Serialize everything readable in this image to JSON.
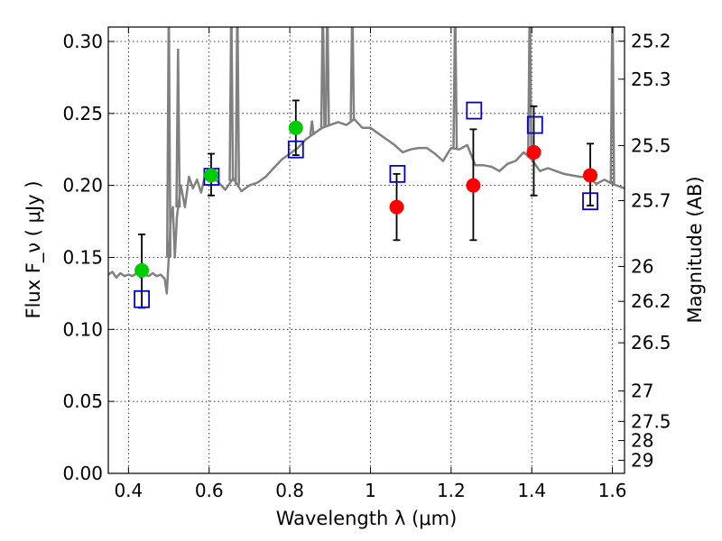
{
  "chart_data": {
    "type": "scatter",
    "xlabel": "Wavelength  λ (μm)",
    "ylabel": "Flux  F_ν  ( μJy )",
    "y2label": "Magnitude (AB)",
    "xlim": [
      0.35,
      1.63
    ],
    "ylim": [
      0.0,
      0.31
    ],
    "grid": true,
    "x_ticks": [
      0.4,
      0.6,
      0.8,
      1.0,
      1.2,
      1.4,
      1.6
    ],
    "x_tick_labels": [
      "0.4",
      "0.6",
      "0.8",
      "1",
      "1.2",
      "1.4",
      "1.6"
    ],
    "y_ticks": [
      0.0,
      0.05,
      0.1,
      0.15,
      0.2,
      0.25,
      0.3
    ],
    "y_tick_labels": [
      "0.00",
      "0.05",
      "0.10",
      "0.15",
      "0.20",
      "0.25",
      "0.30"
    ],
    "y2_ticks": [
      {
        "label": "25.2",
        "flux": 0.3002
      },
      {
        "label": "25.3",
        "flux": 0.2738
      },
      {
        "label": "25.5",
        "flux": 0.2277
      },
      {
        "label": "25.7",
        "flux": 0.1894
      },
      {
        "label": "26",
        "flux": 0.1437
      },
      {
        "label": "26.2",
        "flux": 0.1195
      },
      {
        "label": "26.5",
        "flux": 0.0907
      },
      {
        "label": "27",
        "flux": 0.0572
      },
      {
        "label": "27.5",
        "flux": 0.0361
      },
      {
        "label": "28",
        "flux": 0.0228
      },
      {
        "label": "29",
        "flux": 0.0091
      }
    ],
    "series": [
      {
        "kind": "sed-model-line",
        "color": "#808080",
        "x": [
          0.35,
          0.36,
          0.37,
          0.38,
          0.39,
          0.4,
          0.41,
          0.42,
          0.43,
          0.44,
          0.45,
          0.46,
          0.47,
          0.48,
          0.49,
          0.495,
          0.5,
          0.505,
          0.51,
          0.515,
          0.52,
          0.53,
          0.54,
          0.55,
          0.56,
          0.57,
          0.58,
          0.59,
          0.6,
          0.62,
          0.64,
          0.66,
          0.68,
          0.7,
          0.72,
          0.74,
          0.76,
          0.78,
          0.8,
          0.82,
          0.84,
          0.86,
          0.88,
          0.9,
          0.92,
          0.94,
          0.96,
          0.98,
          1.0,
          1.02,
          1.04,
          1.06,
          1.08,
          1.1,
          1.12,
          1.14,
          1.16,
          1.18,
          1.2,
          1.22,
          1.24,
          1.26,
          1.28,
          1.3,
          1.32,
          1.34,
          1.36,
          1.38,
          1.4,
          1.42,
          1.44,
          1.46,
          1.48,
          1.5,
          1.52,
          1.54,
          1.56,
          1.58,
          1.6,
          1.62,
          1.63
        ],
        "y": [
          0.138,
          0.14,
          0.136,
          0.139,
          0.137,
          0.138,
          0.137,
          0.139,
          0.136,
          0.138,
          0.137,
          0.139,
          0.137,
          0.138,
          0.135,
          0.125,
          0.15,
          0.178,
          0.185,
          0.15,
          0.178,
          0.2,
          0.185,
          0.206,
          0.198,
          0.204,
          0.195,
          0.207,
          0.208,
          0.203,
          0.197,
          0.205,
          0.196,
          0.2,
          0.202,
          0.206,
          0.212,
          0.218,
          0.222,
          0.226,
          0.232,
          0.236,
          0.24,
          0.242,
          0.244,
          0.242,
          0.246,
          0.24,
          0.24,
          0.236,
          0.232,
          0.228,
          0.223,
          0.225,
          0.226,
          0.226,
          0.222,
          0.217,
          0.226,
          0.225,
          0.228,
          0.214,
          0.214,
          0.213,
          0.21,
          0.215,
          0.217,
          0.223,
          0.218,
          0.21,
          0.212,
          0.21,
          0.208,
          0.207,
          0.206,
          0.206,
          0.201,
          0.204,
          0.201,
          0.199,
          0.198
        ]
      },
      {
        "kind": "emission-lines",
        "color": "#808080",
        "lines": [
          {
            "x": 0.5,
            "peak": 0.33
          },
          {
            "x": 0.523,
            "peak": 0.295
          },
          {
            "x": 0.655,
            "peak": 0.33
          },
          {
            "x": 0.67,
            "peak": 0.33
          },
          {
            "x": 0.855,
            "peak": 0.245
          },
          {
            "x": 0.882,
            "peak": 0.33
          },
          {
            "x": 0.893,
            "peak": 0.33
          },
          {
            "x": 0.955,
            "peak": 0.33
          },
          {
            "x": 1.21,
            "peak": 0.33
          },
          {
            "x": 1.395,
            "peak": 0.33
          },
          {
            "x": 1.6,
            "peak": 0.335
          }
        ]
      },
      {
        "kind": "observed-green",
        "color": "#00cc00",
        "x": [
          0.433,
          0.605,
          0.815
        ],
        "y": [
          0.141,
          0.207,
          0.24
        ],
        "yerr_low": [
          0.115,
          0.193,
          0.221
        ],
        "yerr_high": [
          0.166,
          0.222,
          0.259
        ]
      },
      {
        "kind": "observed-red",
        "color": "#ff0000",
        "x": [
          1.065,
          1.255,
          1.405,
          1.545
        ],
        "y": [
          0.185,
          0.2,
          0.223,
          0.207
        ],
        "yerr_low": [
          0.162,
          0.162,
          0.193,
          0.186
        ],
        "yerr_high": [
          0.208,
          0.239,
          0.255,
          0.229
        ]
      },
      {
        "kind": "model-photometry",
        "color": "#0000cc",
        "x": [
          0.433,
          0.606,
          0.815,
          1.067,
          1.257,
          1.408,
          1.545
        ],
        "y": [
          0.121,
          0.206,
          0.225,
          0.208,
          0.252,
          0.242,
          0.189
        ]
      }
    ]
  }
}
